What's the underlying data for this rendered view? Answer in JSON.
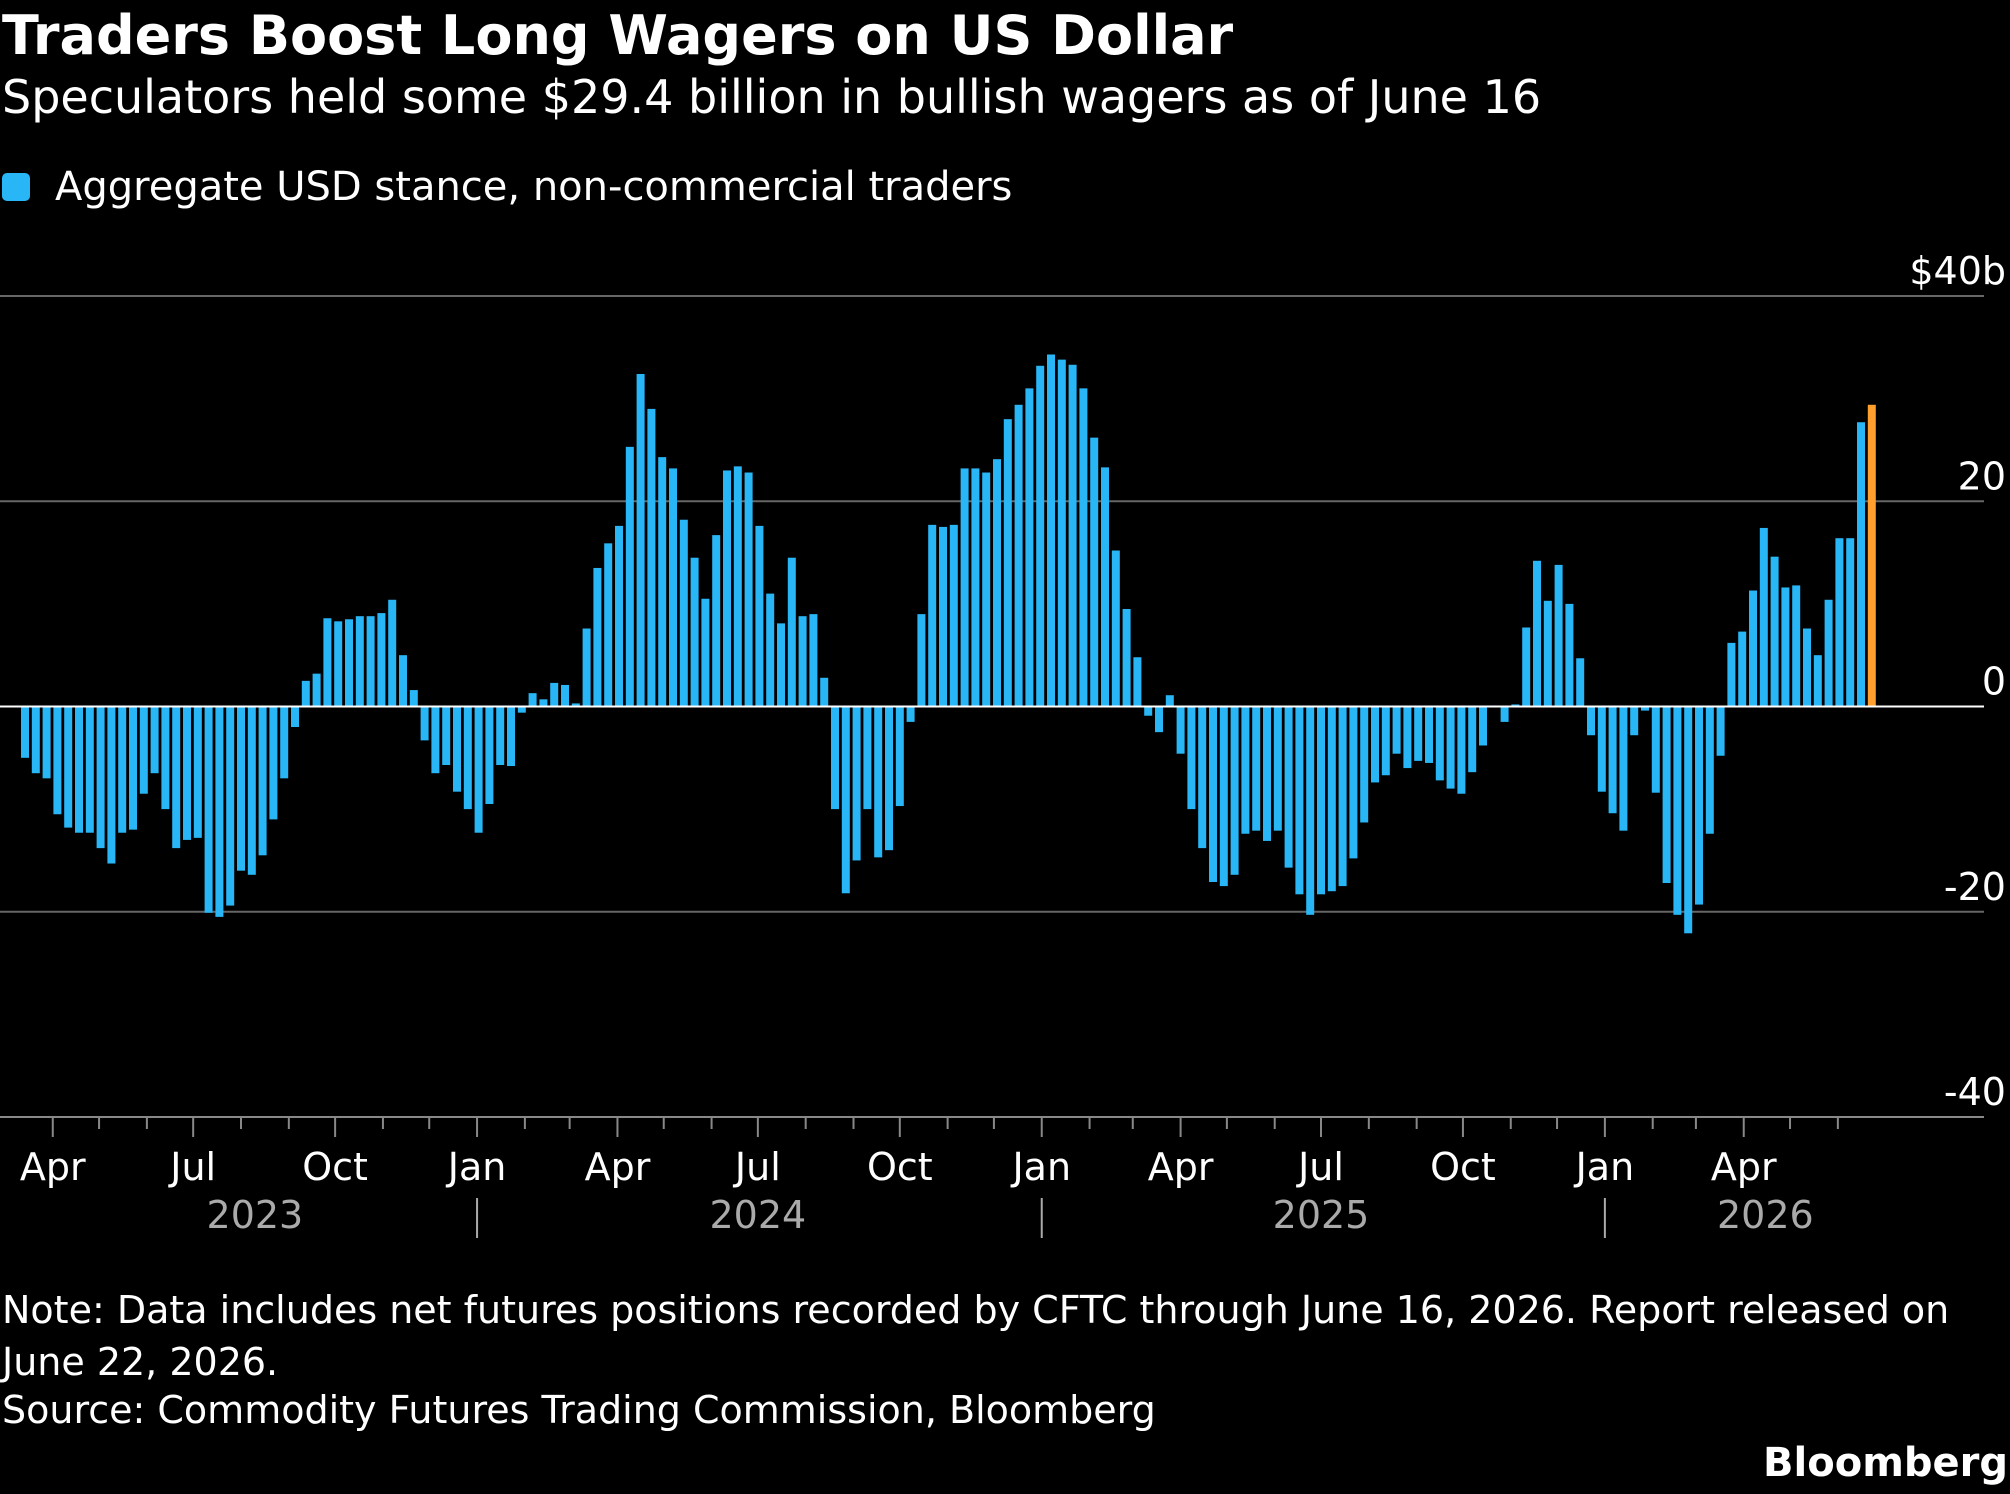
{
  "header": {
    "title": "Traders Boost Long Wagers on US Dollar",
    "subtitle": "Speculators held some $29.4 billion in bullish wagers as of June 16"
  },
  "legend": {
    "label": "Aggregate USD stance, non-commercial traders"
  },
  "colors": {
    "background": "#000000",
    "bar": "#29b6f6",
    "highlight": "#ff9f2e",
    "gridline": "#666666",
    "zero_line": "#ffffff",
    "year_label": "#aaaaaa"
  },
  "footer": {
    "note": "Note: Data includes net futures positions recorded by CFTC through June 16, 2026. Report released on June 22, 2026.",
    "source": "Source: Commodity Futures Trading Commission, Bloomberg",
    "brand": "Bloomberg"
  },
  "chart_data": {
    "type": "bar",
    "series_name": "Aggregate USD stance, non-commercial traders",
    "unit": "USD billions",
    "x_start": "2023-03-14",
    "x_end": "2026-06-16",
    "frequency": "weekly",
    "highlight_last": true,
    "ylim": [
      -40,
      40
    ],
    "yticks": [
      {
        "value": 40,
        "label": "$40b"
      },
      {
        "value": 20,
        "label": "20"
      },
      {
        "value": 0,
        "label": "0"
      },
      {
        "value": -20,
        "label": "-20"
      },
      {
        "value": -40,
        "label": "-40"
      }
    ],
    "month_ticks": [
      {
        "label": "Apr",
        "date": "2023-04-01"
      },
      {
        "label": "Jul",
        "date": "2023-07-01"
      },
      {
        "label": "Oct",
        "date": "2023-10-01"
      },
      {
        "label": "Jan",
        "date": "2024-01-01"
      },
      {
        "label": "Apr",
        "date": "2024-04-01"
      },
      {
        "label": "Jul",
        "date": "2024-07-01"
      },
      {
        "label": "Oct",
        "date": "2024-10-01"
      },
      {
        "label": "Jan",
        "date": "2025-01-01"
      },
      {
        "label": "Apr",
        "date": "2025-04-01"
      },
      {
        "label": "Jul",
        "date": "2025-07-01"
      },
      {
        "label": "Oct",
        "date": "2025-10-01"
      },
      {
        "label": "Jan",
        "date": "2026-01-01"
      },
      {
        "label": "Apr",
        "date": "2026-04-01"
      }
    ],
    "year_labels": [
      {
        "label": "2023",
        "center_date": "2023-08-10"
      },
      {
        "label": "2024",
        "center_date": "2024-07-01"
      },
      {
        "label": "2025",
        "center_date": "2025-07-01"
      },
      {
        "label": "2026",
        "center_date": "2026-04-15"
      }
    ],
    "values": [
      -5,
      -6.5,
      -7,
      -10.5,
      -11.8,
      -12.3,
      -12.3,
      -13.8,
      -15.3,
      -12.3,
      -12,
      -8.5,
      -6.5,
      -10,
      -13.8,
      -13,
      -12.8,
      -20.1,
      -20.5,
      -19.4,
      -16,
      -16.4,
      -14.5,
      -11,
      -7,
      -2,
      2.5,
      3.2,
      8.6,
      8.3,
      8.5,
      8.8,
      8.8,
      9.1,
      10.4,
      5,
      1.6,
      -3.3,
      -6.5,
      -5.7,
      -8.3,
      -10,
      -12.3,
      -9.5,
      -5.7,
      -5.8,
      -0.6,
      1.3,
      0.7,
      2.3,
      2.1,
      0.3,
      7.6,
      13.5,
      15.9,
      17.6,
      25.3,
      32.4,
      29,
      24.3,
      23.2,
      18.2,
      14.5,
      10.5,
      16.7,
      23,
      23.4,
      22.8,
      17.6,
      11,
      8.1,
      14.5,
      8.8,
      9,
      2.8,
      -10,
      -18.2,
      -15,
      -10,
      -14.7,
      -14,
      -9.7,
      -1.5,
      9,
      17.7,
      17.5,
      17.7,
      23.2,
      23.2,
      22.8,
      24.1,
      28,
      29.4,
      31,
      33.2,
      34.3,
      33.8,
      33.3,
      31,
      26.2,
      23.3,
      15.2,
      9.5,
      4.8,
      -0.9,
      -2.5,
      1.1,
      -4.6,
      -10,
      -13.8,
      -17.1,
      -17.5,
      -16.4,
      -12.4,
      -12.1,
      -13.1,
      -12.1,
      -15.7,
      -18.3,
      -20.3,
      -18.3,
      -18,
      -17.5,
      -14.8,
      -11.3,
      -7.4,
      -6.7,
      -4.6,
      -6,
      -5.3,
      -5.5,
      -7.2,
      -8,
      -8.5,
      -6.4,
      -3.8,
      0.1,
      -1.5,
      0.2,
      7.7,
      14.2,
      10.3,
      13.8,
      10,
      4.7,
      -2.8,
      -8.3,
      -10.4,
      -12.1,
      -2.8,
      -0.4,
      -8.4,
      -17.2,
      -20.3,
      -22.1,
      -19.3,
      -12.4,
      -4.8,
      6.2,
      7.3,
      11.3,
      17.4,
      14.6,
      11.6,
      11.8,
      7.6,
      5,
      10.4,
      16.4,
      16.4,
      27.7,
      29.4
    ]
  }
}
